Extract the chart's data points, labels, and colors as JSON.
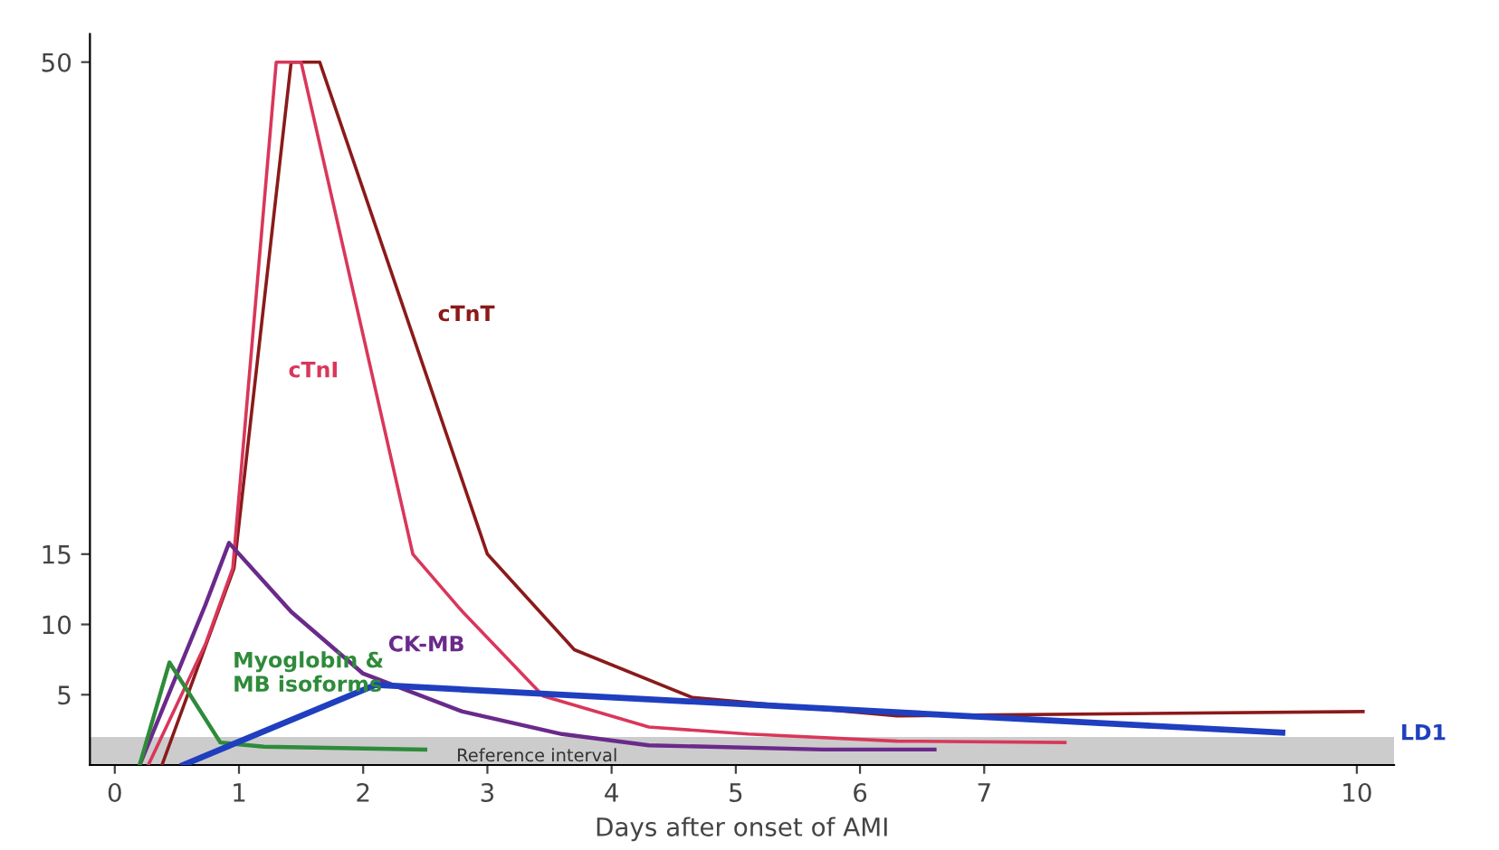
{
  "chart_data": {
    "type": "line",
    "xlabel": "Days after onset of AMI",
    "xlim": [
      -0.2,
      10.3
    ],
    "xticks": [
      0,
      1,
      2,
      3,
      4,
      5,
      6,
      7,
      10
    ],
    "ylim": [
      0,
      52
    ],
    "yticks": [
      5,
      10,
      15,
      50
    ],
    "grid": false,
    "legend": false,
    "marker": "none",
    "line_style": "solid",
    "series": [
      {
        "name": "cTnT",
        "color": "#8b1a1a",
        "x": [
          0.38,
          0.96,
          1.42,
          1.65,
          3.0,
          3.7,
          4.65,
          6.3,
          10.05
        ],
        "values": [
          0,
          14,
          50,
          50,
          15,
          8.2,
          4.8,
          3.5,
          3.8
        ]
      },
      {
        "name": "cTnI",
        "color": "#d9375a",
        "x": [
          0.27,
          0.73,
          0.95,
          1.3,
          1.5,
          2.4,
          2.8,
          3.45,
          4.3,
          5.1,
          6.3,
          7.65
        ],
        "values": [
          0,
          8.6,
          14,
          50,
          50,
          15,
          10.9,
          4.9,
          2.7,
          2.2,
          1.7,
          1.6
        ]
      },
      {
        "name": "CK-MB",
        "color": "#6a2a8a",
        "x": [
          0.2,
          0.73,
          0.92,
          1.42,
          2.0,
          2.8,
          3.6,
          4.3,
          5.7,
          6.6
        ],
        "values": [
          0,
          11.4,
          15.8,
          10.9,
          6.5,
          3.8,
          2.2,
          1.4,
          1.1,
          1.1
        ]
      },
      {
        "name": "Myoglobin &\nMB isoforms",
        "color": "#2e8b3a",
        "x": [
          0.2,
          0.44,
          0.85,
          1.2,
          2.5
        ],
        "values": [
          0,
          7.3,
          1.6,
          1.3,
          1.1
        ]
      },
      {
        "name": "LD1",
        "color": "#1f3fbf",
        "x": [
          0.55,
          2.1,
          9.4
        ],
        "values": [
          0,
          5.7,
          2.3
        ]
      }
    ],
    "bands": [
      {
        "axis": "y",
        "from": 0,
        "to": 2,
        "label": "Reference interval",
        "color": "#cccccc"
      }
    ]
  }
}
